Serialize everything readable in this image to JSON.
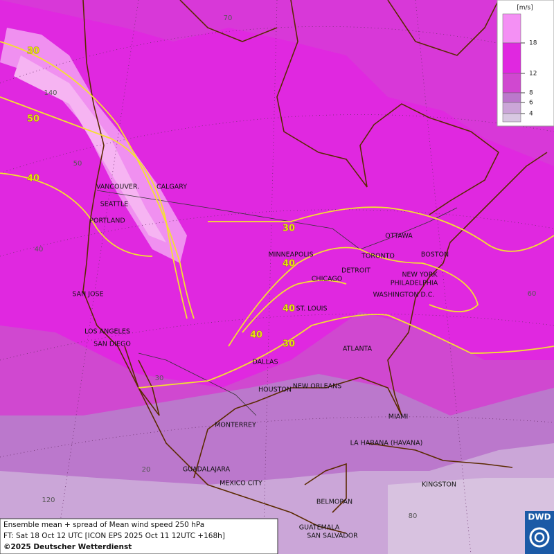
{
  "legend": {
    "unit": "[m/s]",
    "ticks": [
      18,
      12,
      8,
      6,
      4
    ]
  },
  "cities": [
    "VANCOUVER.",
    "CALGARY",
    "SEATTLE",
    "PORTLAND",
    "SAN JOSE",
    "LOS ANGELES",
    "SAN DIEGO",
    "MINNEAPOLIS",
    "TORONTO",
    "OTTAWA",
    "DETROIT",
    "CHICAGO",
    "BOSTON",
    "NEW YORK",
    "PHILADELPHIA",
    "WASHINGTON D.C.",
    "ST. LOUIS",
    "ATLANTA",
    "DALLAS",
    "HOUSTON",
    "NEW ORLEANS",
    "MIAMI",
    "MONTERREY",
    "LA HABANA (HAVANA)",
    "GUADALAJARA",
    "MEXICO CITY",
    "KINGSTON",
    "BELMOPAN",
    "GUATEMALA",
    "SAN SALVADOR"
  ],
  "contour_labels": [
    30,
    50,
    40,
    30,
    40,
    40,
    40,
    30
  ],
  "grid_labels": [
    70,
    140,
    50,
    40,
    60,
    30,
    20,
    120,
    80
  ],
  "caption": {
    "line1": "Ensemble mean + spread of Mean wind speed 250 hPa",
    "line2": "FT: Sat 18 Oct 12 UTC [ICON EPS 2025 Oct 11 12UTC +168h]",
    "line3": "©2025 Deutscher Wetterdienst"
  },
  "logo": "DWD"
}
